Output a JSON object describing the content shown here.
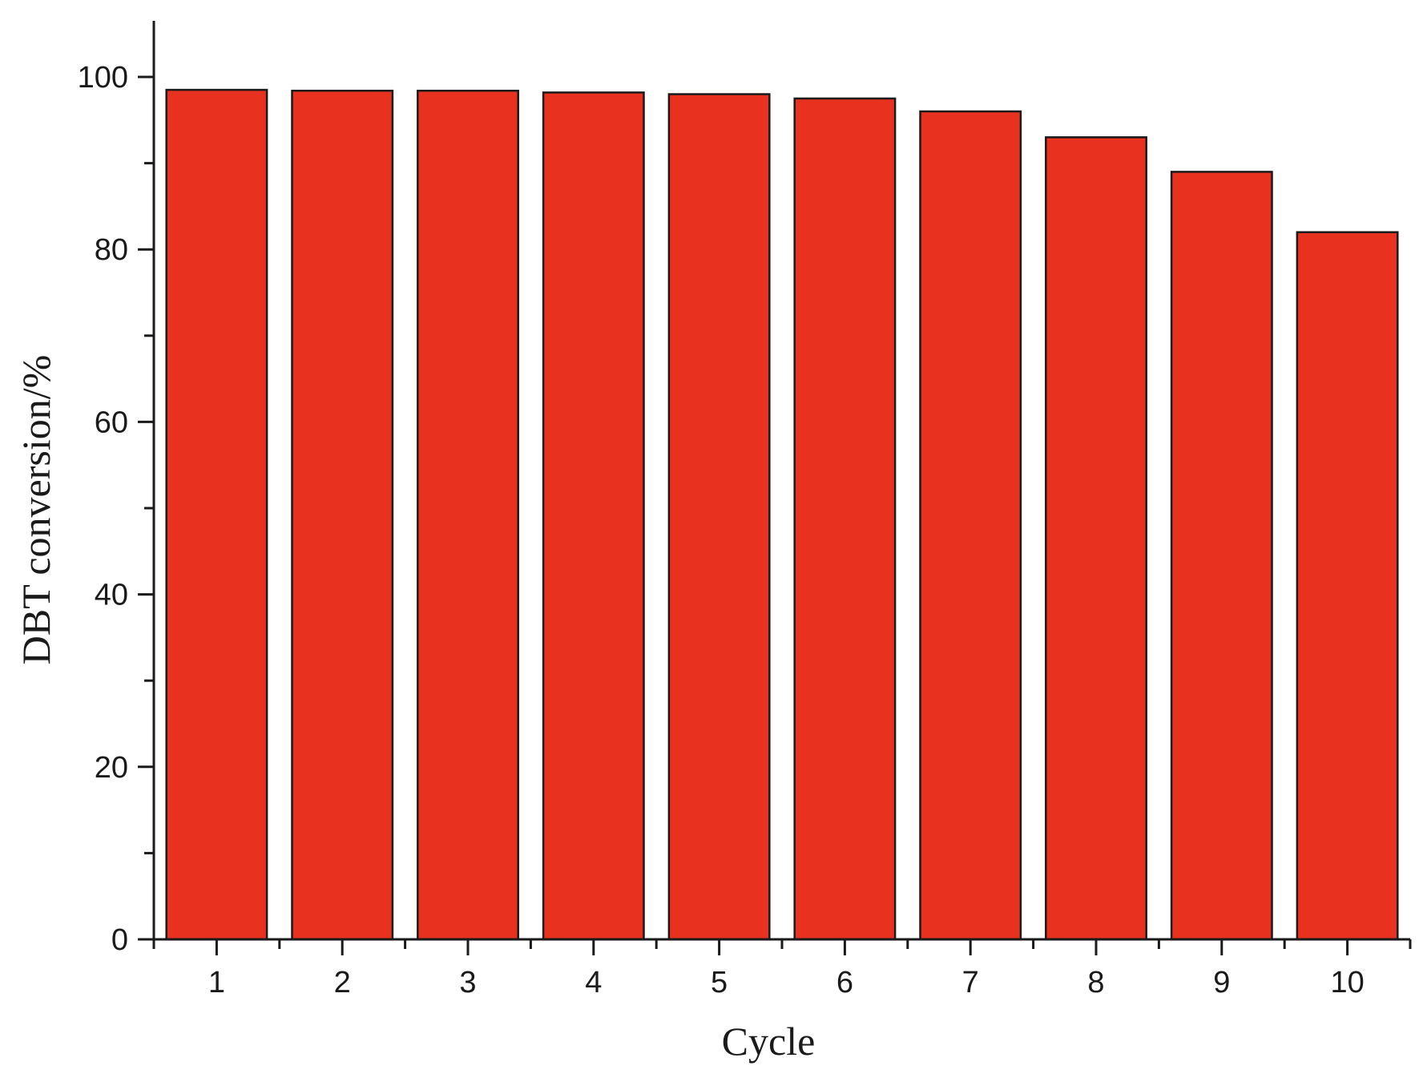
{
  "chart_data": {
    "type": "bar",
    "categories": [
      "1",
      "2",
      "3",
      "4",
      "5",
      "6",
      "7",
      "8",
      "9",
      "10"
    ],
    "values": [
      98.5,
      98.4,
      98.4,
      98.2,
      98.0,
      97.5,
      96.0,
      93.0,
      89.0,
      82.0
    ],
    "title": "",
    "xlabel": "Cycle",
    "ylabel": "DBT conversion/%",
    "ylim": [
      0,
      105
    ],
    "yticks": [
      0,
      20,
      40,
      60,
      80,
      100
    ],
    "grid": false,
    "legend": "none",
    "bar_color": "#e8321f"
  }
}
